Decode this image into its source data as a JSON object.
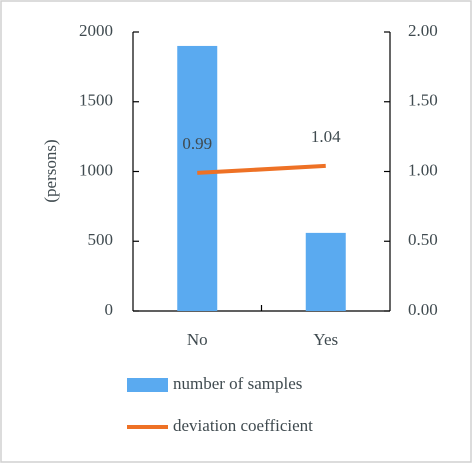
{
  "chart_data": {
    "type": "bar",
    "categories": [
      "No",
      "Yes"
    ],
    "y_label": "(persons)",
    "series": [
      {
        "name": "number of samples",
        "type": "bar",
        "color": "#5aaaf0",
        "values": [
          1900,
          560
        ]
      },
      {
        "name": "deviation coefficient",
        "type": "line",
        "color": "#ee7125",
        "axis": "y2",
        "values": [
          0.99,
          1.04
        ]
      }
    ],
    "ylim": [
      0,
      2000
    ],
    "yticks": [
      0,
      500,
      1000,
      1500,
      2000
    ],
    "y2lim": [
      0,
      2
    ],
    "y2ticks": [
      {
        "value": 0,
        "label": "0.00"
      },
      {
        "value": 0.5,
        "label": "0.50"
      },
      {
        "value": 1,
        "label": "1.00"
      },
      {
        "value": 1.5,
        "label": "1.50"
      },
      {
        "value": 2,
        "label": "2.00"
      }
    ],
    "grid": false,
    "legend": "bottom"
  }
}
